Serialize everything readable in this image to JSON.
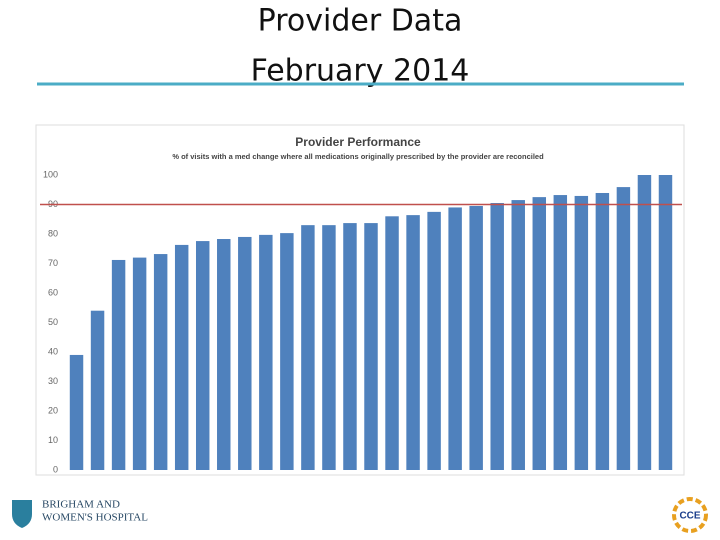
{
  "header": {
    "title_lines": [
      "Provider Data",
      "February 2014"
    ]
  },
  "chart_data": {
    "type": "bar",
    "title": "Provider Performance",
    "subtitle": "% of visits with a med change where all medications originally prescribed by the provider are reconciled",
    "values": [
      39,
      54,
      71.2,
      72,
      73.2,
      76.3,
      77.6,
      78.3,
      79,
      79.7,
      80.3,
      83,
      83,
      83.7,
      83.7,
      86,
      86.4,
      87.5,
      89,
      89.5,
      90.5,
      91.5,
      92.5,
      93.2,
      92.9,
      93.9,
      95.9,
      100,
      100
    ],
    "color": "#4f81bd",
    "target": 90,
    "target_color": "#c0504d",
    "ylim": [
      0,
      100
    ],
    "yticks": [
      0,
      10,
      20,
      30,
      40,
      50,
      60,
      70,
      80,
      90,
      100
    ],
    "grid": false
  },
  "footer": {
    "logo_lines": [
      "BRIGHAM AND",
      "WOMEN'S HOSPITAL"
    ],
    "badge": "CCE"
  }
}
